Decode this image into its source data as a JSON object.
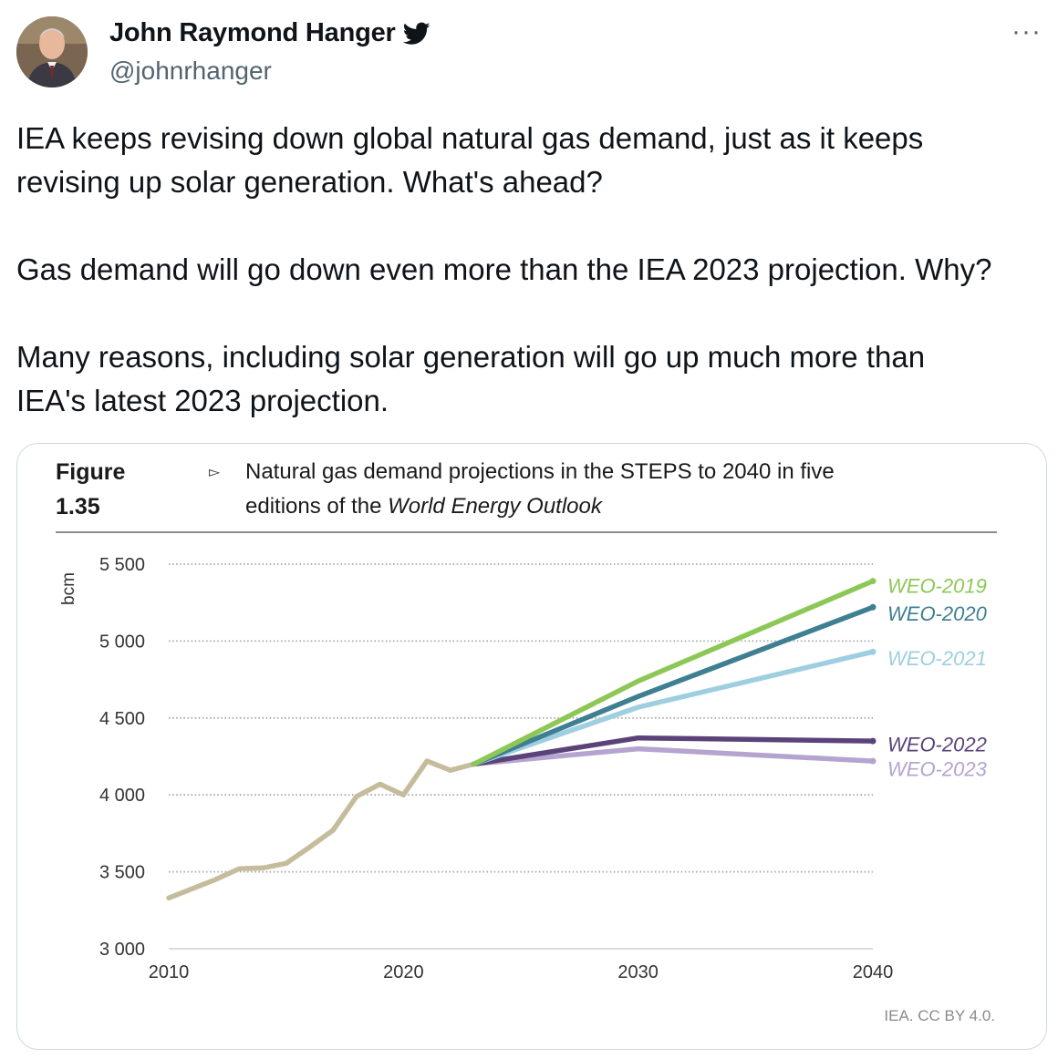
{
  "author": {
    "name": "John Raymond Hanger",
    "handle": "@johnrhanger",
    "verified_icon": "twitter-bird-icon"
  },
  "menu_icon": "more-horizontal-icon",
  "menu_label": "···",
  "tweet": {
    "paragraphs": [
      "IEA keeps revising down global natural gas demand, just as it keeps\nrevising up solar generation. What's ahead?",
      "Gas demand will go down even more than the IEA 2023 projection. Why?",
      "Many reasons, including solar generation will go up much more than\nIEA's latest 2023 projection."
    ]
  },
  "figure": {
    "label": "Figure 1.35",
    "arrow": "▻",
    "caption_line1": "Natural gas demand projections in the STEPS to 2040 in five",
    "caption_line2_prefix": "editions of the ",
    "caption_line2_italic": "World Energy Outlook",
    "credit": "IEA. CC BY 4.0."
  },
  "chart_data": {
    "type": "line",
    "ylabel": "bcm",
    "xlabel": "",
    "ylim": [
      3000,
      5500
    ],
    "xlim": [
      2010,
      2040
    ],
    "y_ticks": [
      3000,
      3500,
      4000,
      4500,
      5000,
      5500
    ],
    "y_tick_labels": [
      "3 000",
      "3 500",
      "4 000",
      "4 500",
      "5 000",
      "5 500"
    ],
    "x_ticks": [
      2010,
      2020,
      2030,
      2040
    ],
    "x_tick_labels": [
      "2010",
      "2020",
      "2030",
      "2040"
    ],
    "grid": "horizontal dotted",
    "legend": "labels at line ends, right",
    "series": [
      {
        "name": "",
        "color": "#c5bc9c",
        "points": [
          [
            2010,
            3330
          ],
          [
            2011,
            3390
          ],
          [
            2012,
            3450
          ],
          [
            2013,
            3520
          ],
          [
            2014,
            3525
          ],
          [
            2015,
            3555
          ],
          [
            2016,
            3660
          ],
          [
            2017,
            3770
          ],
          [
            2018,
            3990
          ],
          [
            2019,
            4070
          ],
          [
            2020,
            4000
          ],
          [
            2021,
            4220
          ],
          [
            2022,
            4160
          ],
          [
            2023,
            4200
          ]
        ]
      },
      {
        "name": "WEO-2019",
        "color": "#8dc856",
        "points": [
          [
            2023,
            4200
          ],
          [
            2030,
            4740
          ],
          [
            2040,
            5390
          ]
        ]
      },
      {
        "name": "WEO-2020",
        "color": "#3e7f91",
        "points": [
          [
            2023,
            4200
          ],
          [
            2030,
            4640
          ],
          [
            2040,
            5220
          ]
        ]
      },
      {
        "name": "WEO-2021",
        "color": "#9ecfe0",
        "points": [
          [
            2023,
            4200
          ],
          [
            2030,
            4570
          ],
          [
            2040,
            4930
          ]
        ]
      },
      {
        "name": "WEO-2022",
        "color": "#5b4279",
        "points": [
          [
            2023,
            4200
          ],
          [
            2030,
            4370
          ],
          [
            2040,
            4350
          ]
        ]
      },
      {
        "name": "WEO-2023",
        "color": "#b4a4cf",
        "points": [
          [
            2023,
            4200
          ],
          [
            2030,
            4300
          ],
          [
            2040,
            4220
          ]
        ]
      }
    ]
  }
}
